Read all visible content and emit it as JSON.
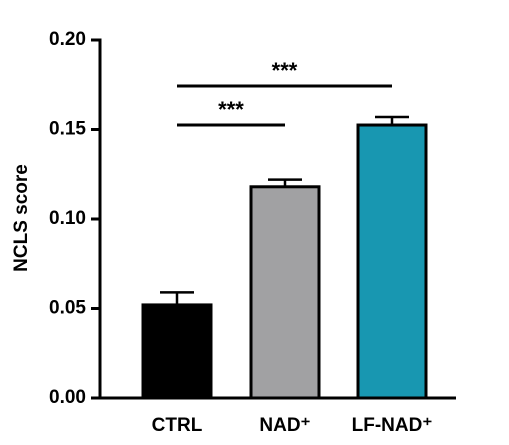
{
  "chart_data": {
    "type": "bar",
    "ylabel": "NCLS score",
    "categories": [
      "CTRL",
      "NAD⁺",
      "LF-NAD⁺"
    ],
    "values": [
      0.052,
      0.118,
      0.1525
    ],
    "errors": [
      0.007,
      0.004,
      0.0045
    ],
    "colors": [
      "#000000",
      "#a1a1a3",
      "#1897b1"
    ],
    "ylim": [
      0,
      0.2
    ],
    "yticks": [
      {
        "value": 0,
        "label": "0.00"
      },
      {
        "value": 0.05,
        "label": "0.05"
      },
      {
        "value": 0.1,
        "label": "0.10"
      },
      {
        "value": 0.15,
        "label": "0.15"
      },
      {
        "value": 0.2,
        "label": "0.20"
      }
    ],
    "annotations": [
      {
        "text": "***",
        "between": [
          "CTRL",
          "NAD⁺"
        ]
      },
      {
        "text": "***",
        "between": [
          "CTRL",
          "LF-NAD⁺"
        ]
      }
    ]
  }
}
